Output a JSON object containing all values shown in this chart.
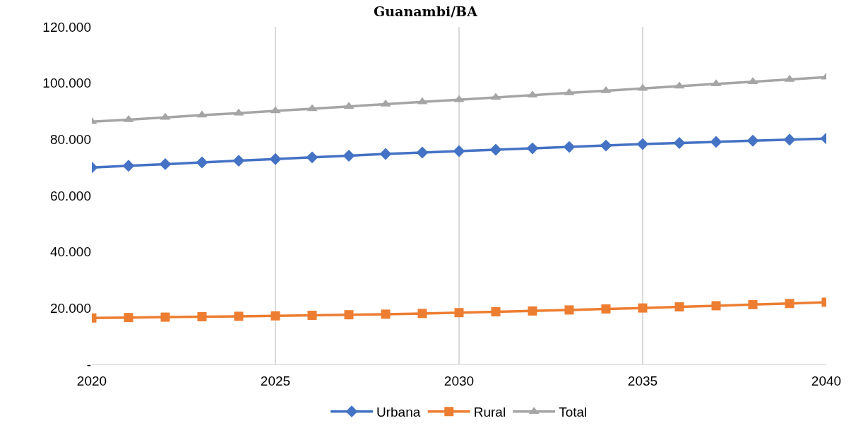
{
  "chart_data": {
    "type": "line",
    "title": "Guanambi/BA",
    "x": [
      2020,
      2021,
      2022,
      2023,
      2024,
      2025,
      2026,
      2027,
      2028,
      2029,
      2030,
      2031,
      2032,
      2033,
      2034,
      2035,
      2036,
      2037,
      2038,
      2039,
      2040
    ],
    "series": [
      {
        "name": "Urbana",
        "color": "#4472c4",
        "marker": "diamond",
        "values": [
          70000,
          70600,
          71200,
          71800,
          72400,
          73000,
          73600,
          74200,
          74800,
          75300,
          75800,
          76300,
          76800,
          77300,
          77800,
          78300,
          78700,
          79100,
          79500,
          79900,
          80300
        ]
      },
      {
        "name": "Rural",
        "color": "#ed7d31",
        "marker": "square",
        "values": [
          16500,
          16650,
          16800,
          16950,
          17100,
          17250,
          17450,
          17650,
          17850,
          18100,
          18400,
          18700,
          19000,
          19350,
          19700,
          20050,
          20450,
          20850,
          21250,
          21650,
          22100
        ]
      },
      {
        "name": "Total",
        "color": "#a5a5a5",
        "marker": "triangle",
        "values": [
          86300,
          87000,
          87800,
          88600,
          89300,
          90100,
          90900,
          91700,
          92500,
          93300,
          94100,
          94900,
          95700,
          96500,
          97300,
          98100,
          98900,
          99700,
          100500,
          101300,
          102100
        ]
      }
    ],
    "xlim": [
      2020,
      2040
    ],
    "xticks": [
      2020,
      2025,
      2030,
      2035,
      2040
    ],
    "ylim": [
      0,
      120000
    ],
    "yticks": [
      {
        "value": 0,
        "label": "-"
      },
      {
        "value": 20000,
        "label": "20.000"
      },
      {
        "value": 40000,
        "label": "40.000"
      },
      {
        "value": 60000,
        "label": "60.000"
      },
      {
        "value": 80000,
        "label": "80.000"
      },
      {
        "value": 100000,
        "label": "100.000"
      },
      {
        "value": 120000,
        "label": "120.000"
      }
    ],
    "grid": "x",
    "legend": "bottom",
    "line_style": "solid"
  }
}
